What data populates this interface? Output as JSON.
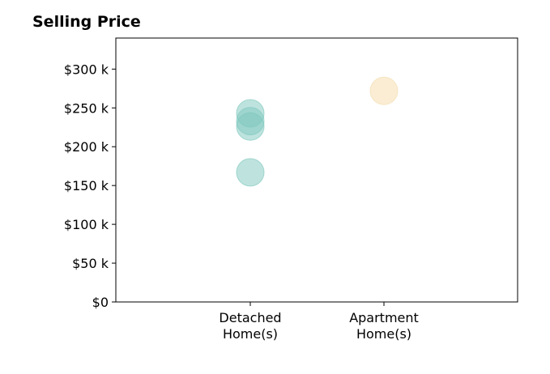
{
  "title": "Selling Price",
  "chart_data": {
    "type": "scatter",
    "title": "Selling Price",
    "xlabel": "",
    "ylabel": "",
    "ylim": [
      0,
      340000
    ],
    "y_ticks": [
      0,
      50000,
      100000,
      150000,
      200000,
      250000,
      300000
    ],
    "y_tick_labels": [
      "$0",
      "$50 k",
      "$100 k",
      "$150 k",
      "$200 k",
      "$250 k",
      "$300 k"
    ],
    "categories": [
      {
        "lines": [
          "Detached",
          "Home(s)"
        ]
      },
      {
        "lines": [
          "Apartment",
          "Home(s)"
        ]
      }
    ],
    "grid": false,
    "series": [
      {
        "category_index": 0,
        "color": "#7ec8bd",
        "opacity": 0.5,
        "values": [
          243000,
          233000,
          226000,
          167000
        ]
      },
      {
        "category_index": 1,
        "color": "#f5deb0",
        "opacity": 0.55,
        "values": [
          272000
        ]
      }
    ]
  }
}
